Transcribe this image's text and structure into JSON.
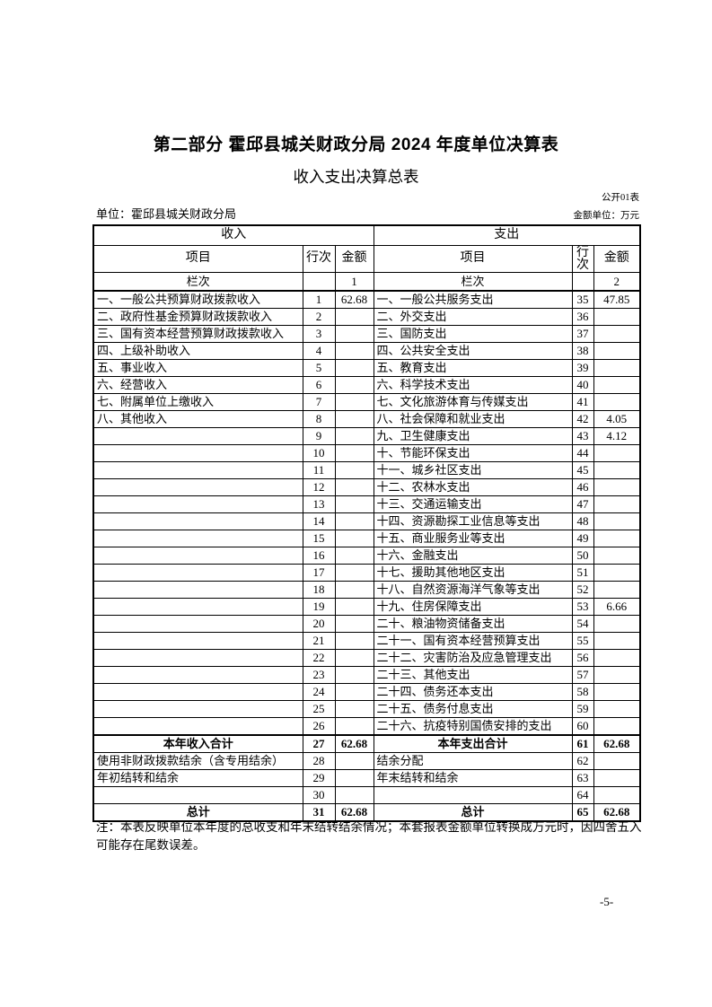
{
  "page": {
    "title": "第二部分 霍邱县城关财政分局 2024 年度单位决算表",
    "subtitle": "收入支出决算总表",
    "table_code": "公开01表",
    "unit_label": "单位：霍邱县城关财政分局",
    "amount_unit_label": "金额单位：万元",
    "note": "注：本表反映单位本年度的总收支和年末结转结余情况；本套报表金额单位转换成万元时，因四舍五入可能存在尾数误差。",
    "page_number": "-5-"
  },
  "colors": {
    "text": "#000000",
    "border": "#000000",
    "background": "#ffffff"
  },
  "table": {
    "income_header": "收入",
    "expenditure_header": "支出",
    "col_item": "项目",
    "col_row_no": "行次",
    "col_amount": "金额",
    "index_label": "栏次",
    "income_index": "1",
    "expenditure_index": "2",
    "rows": [
      {
        "left": {
          "item": "一、一般公共预算财政拨款收入",
          "no": "1",
          "amt": "62.68"
        },
        "right": {
          "item": "一、一般公共服务支出",
          "no": "35",
          "amt": "47.85"
        }
      },
      {
        "left": {
          "item": "二、政府性基金预算财政拨款收入",
          "no": "2",
          "amt": ""
        },
        "right": {
          "item": "二、外交支出",
          "no": "36",
          "amt": ""
        }
      },
      {
        "left": {
          "item": "三、国有资本经营预算财政拨款收入",
          "no": "3",
          "amt": ""
        },
        "right": {
          "item": "三、国防支出",
          "no": "37",
          "amt": ""
        }
      },
      {
        "left": {
          "item": "四、上级补助收入",
          "no": "4",
          "amt": ""
        },
        "right": {
          "item": "四、公共安全支出",
          "no": "38",
          "amt": ""
        }
      },
      {
        "left": {
          "item": "五、事业收入",
          "no": "5",
          "amt": ""
        },
        "right": {
          "item": "五、教育支出",
          "no": "39",
          "amt": ""
        }
      },
      {
        "left": {
          "item": "六、经营收入",
          "no": "6",
          "amt": ""
        },
        "right": {
          "item": "六、科学技术支出",
          "no": "40",
          "amt": ""
        }
      },
      {
        "left": {
          "item": "七、附属单位上缴收入",
          "no": "7",
          "amt": ""
        },
        "right": {
          "item": "七、文化旅游体育与传媒支出",
          "no": "41",
          "amt": ""
        }
      },
      {
        "left": {
          "item": "八、其他收入",
          "no": "8",
          "amt": ""
        },
        "right": {
          "item": "八、社会保障和就业支出",
          "no": "42",
          "amt": "4.05"
        }
      },
      {
        "left": {
          "item": "",
          "no": "9",
          "amt": ""
        },
        "right": {
          "item": "九、卫生健康支出",
          "no": "43",
          "amt": "4.12"
        }
      },
      {
        "left": {
          "item": "",
          "no": "10",
          "amt": ""
        },
        "right": {
          "item": "十、节能环保支出",
          "no": "44",
          "amt": ""
        }
      },
      {
        "left": {
          "item": "",
          "no": "11",
          "amt": ""
        },
        "right": {
          "item": "十一、城乡社区支出",
          "no": "45",
          "amt": ""
        }
      },
      {
        "left": {
          "item": "",
          "no": "12",
          "amt": ""
        },
        "right": {
          "item": "十二、农林水支出",
          "no": "46",
          "amt": ""
        }
      },
      {
        "left": {
          "item": "",
          "no": "13",
          "amt": ""
        },
        "right": {
          "item": "十三、交通运输支出",
          "no": "47",
          "amt": ""
        }
      },
      {
        "left": {
          "item": "",
          "no": "14",
          "amt": ""
        },
        "right": {
          "item": "十四、资源勘探工业信息等支出",
          "no": "48",
          "amt": ""
        }
      },
      {
        "left": {
          "item": "",
          "no": "15",
          "amt": ""
        },
        "right": {
          "item": "十五、商业服务业等支出",
          "no": "49",
          "amt": ""
        }
      },
      {
        "left": {
          "item": "",
          "no": "16",
          "amt": ""
        },
        "right": {
          "item": "十六、金融支出",
          "no": "50",
          "amt": ""
        }
      },
      {
        "left": {
          "item": "",
          "no": "17",
          "amt": ""
        },
        "right": {
          "item": "十七、援助其他地区支出",
          "no": "51",
          "amt": ""
        }
      },
      {
        "left": {
          "item": "",
          "no": "18",
          "amt": ""
        },
        "right": {
          "item": "十八、自然资源海洋气象等支出",
          "no": "52",
          "amt": ""
        }
      },
      {
        "left": {
          "item": "",
          "no": "19",
          "amt": ""
        },
        "right": {
          "item": "十九、住房保障支出",
          "no": "53",
          "amt": "6.66"
        }
      },
      {
        "left": {
          "item": "",
          "no": "20",
          "amt": ""
        },
        "right": {
          "item": "二十、粮油物资储备支出",
          "no": "54",
          "amt": ""
        }
      },
      {
        "left": {
          "item": "",
          "no": "21",
          "amt": ""
        },
        "right": {
          "item": "二十一、国有资本经营预算支出",
          "no": "55",
          "amt": ""
        }
      },
      {
        "left": {
          "item": "",
          "no": "22",
          "amt": ""
        },
        "right": {
          "item": "二十二、灾害防治及应急管理支出",
          "no": "56",
          "amt": ""
        }
      },
      {
        "left": {
          "item": "",
          "no": "23",
          "amt": ""
        },
        "right": {
          "item": "二十三、其他支出",
          "no": "57",
          "amt": ""
        }
      },
      {
        "left": {
          "item": "",
          "no": "24",
          "amt": ""
        },
        "right": {
          "item": "二十四、债务还本支出",
          "no": "58",
          "amt": ""
        }
      },
      {
        "left": {
          "item": "",
          "no": "25",
          "amt": ""
        },
        "right": {
          "item": "二十五、债务付息支出",
          "no": "59",
          "amt": ""
        }
      },
      {
        "left": {
          "item": "",
          "no": "26",
          "amt": ""
        },
        "right": {
          "item": "二十六、抗疫特别国债安排的支出",
          "no": "60",
          "amt": ""
        }
      },
      {
        "total": true,
        "left": {
          "item": "本年收入合计",
          "no": "27",
          "amt": "62.68"
        },
        "right": {
          "item": "本年支出合计",
          "no": "61",
          "amt": "62.68"
        }
      },
      {
        "left": {
          "item": "使用非财政拨款结余（含专用结余）",
          "no": "28",
          "amt": ""
        },
        "right": {
          "item": "结余分配",
          "no": "62",
          "amt": ""
        }
      },
      {
        "left": {
          "item": "年初结转和结余",
          "no": "29",
          "amt": ""
        },
        "right": {
          "item": "年末结转和结余",
          "no": "63",
          "amt": ""
        }
      },
      {
        "left": {
          "item": "",
          "no": "30",
          "amt": ""
        },
        "right": {
          "item": "",
          "no": "64",
          "amt": ""
        }
      },
      {
        "total": true,
        "left": {
          "item": "总计",
          "no": "31",
          "amt": "62.68"
        },
        "right": {
          "item": "总计",
          "no": "65",
          "amt": "62.68"
        }
      }
    ]
  }
}
